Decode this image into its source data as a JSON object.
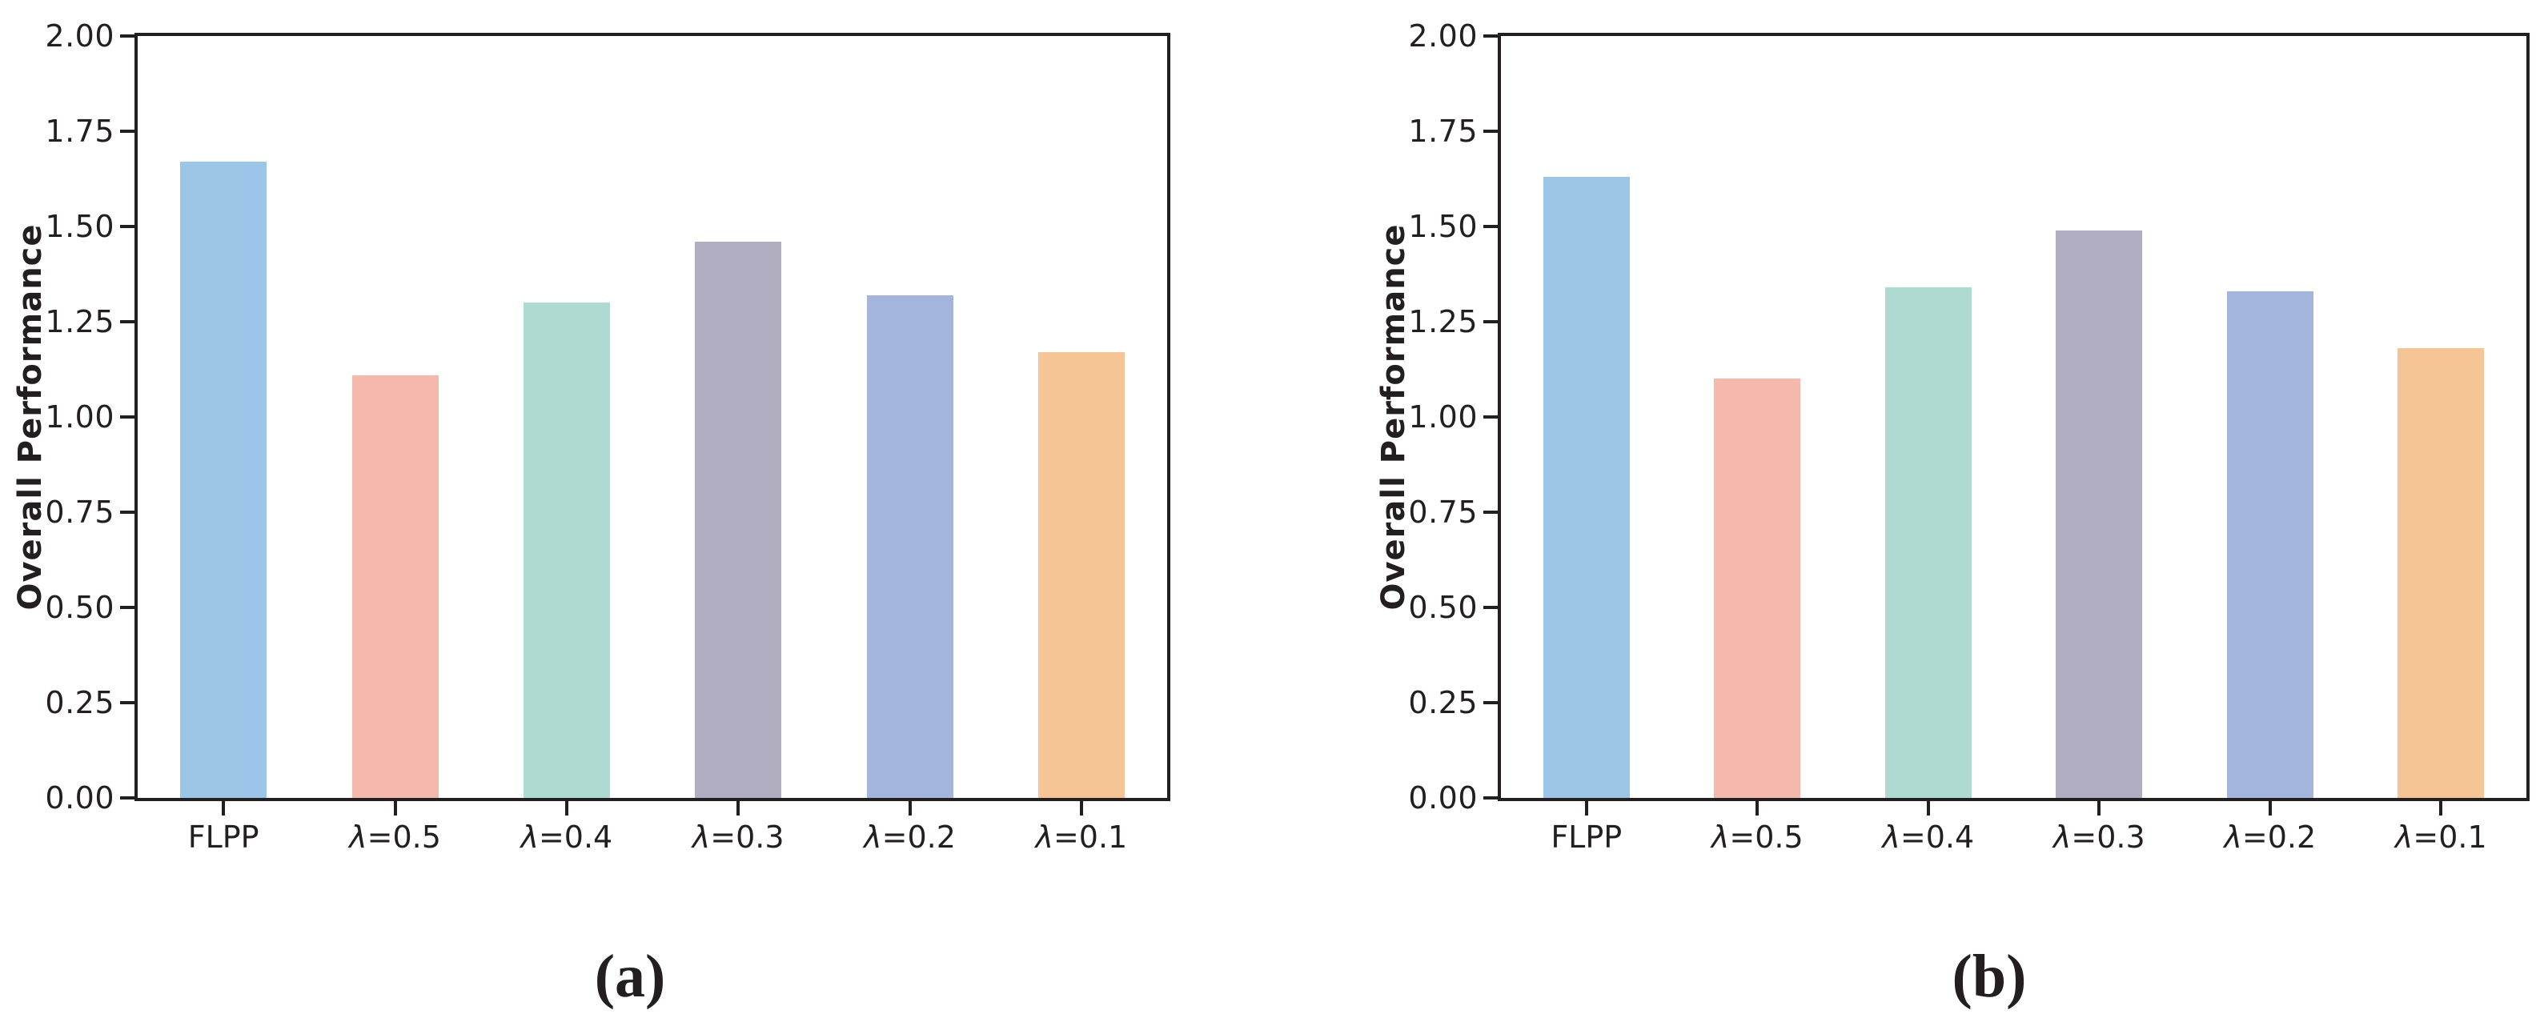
{
  "figure": {
    "background": "#ffffff",
    "axis_color": "#231f20",
    "panel_count": 2
  },
  "chart_data": [
    {
      "type": "bar",
      "title": "(a)",
      "categories": [
        "FLPP",
        "λ=0.5",
        "λ=0.4",
        "λ=0.3",
        "λ=0.2",
        "λ=0.1"
      ],
      "values": [
        1.67,
        1.11,
        1.3,
        1.46,
        1.32,
        1.17
      ],
      "xlabel": "",
      "ylabel": "Overall Performance",
      "ylim": [
        0.0,
        2.0
      ],
      "ytick_values": [
        0.0,
        0.25,
        0.5,
        0.75,
        1.0,
        1.25,
        1.5,
        1.75,
        2.0
      ],
      "ytick_labels": [
        "0.00",
        "0.25",
        "0.50",
        "0.75",
        "1.00",
        "1.25",
        "1.50",
        "1.75",
        "2.00"
      ],
      "bar_colors": [
        "#9cc6e8",
        "#f4b9ac",
        "#aedad2",
        "#b1aec1",
        "#a4b5dd",
        "#f5c595"
      ],
      "grid": false,
      "legend": null,
      "box": true
    },
    {
      "type": "bar",
      "title": "(b)",
      "categories": [
        "FLPP",
        "λ=0.5",
        "λ=0.4",
        "λ=0.3",
        "λ=0.2",
        "λ=0.1"
      ],
      "values": [
        1.63,
        1.1,
        1.34,
        1.49,
        1.33,
        1.18
      ],
      "xlabel": "",
      "ylabel": "Overall Performance",
      "ylim": [
        0.0,
        2.0
      ],
      "ytick_values": [
        0.0,
        0.25,
        0.5,
        0.75,
        1.0,
        1.25,
        1.5,
        1.75,
        2.0
      ],
      "ytick_labels": [
        "0.00",
        "0.25",
        "0.50",
        "0.75",
        "1.00",
        "1.25",
        "1.50",
        "1.75",
        "2.00"
      ],
      "bar_colors": [
        "#9cc6e8",
        "#f4b9ac",
        "#aedad2",
        "#b1aec1",
        "#a4b5dd",
        "#f5c595"
      ],
      "grid": false,
      "legend": null,
      "box": true
    }
  ]
}
